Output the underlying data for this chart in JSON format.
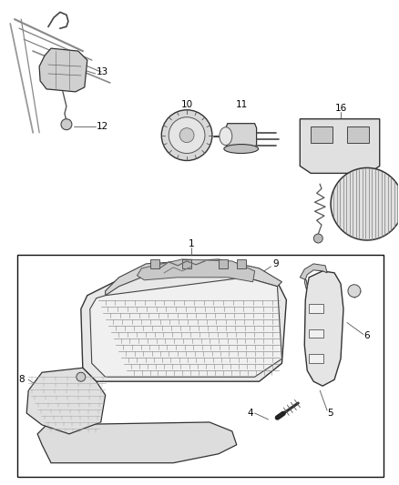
{
  "bg_color": "#ffffff",
  "border_color": "#000000",
  "text_color": "#000000",
  "fig_width": 4.38,
  "fig_height": 5.33,
  "dpi": 100,
  "label_fontsize": 7.5
}
